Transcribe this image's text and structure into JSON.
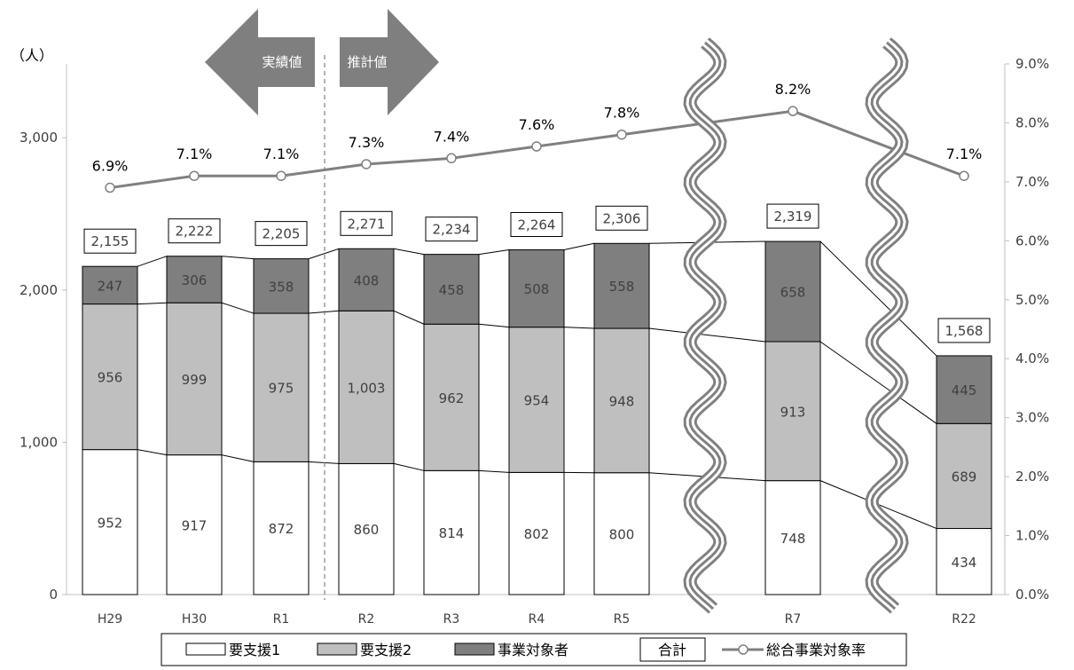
{
  "chart_data": {
    "type": "bar",
    "y_unit_label": "（人）",
    "categories": [
      "H29",
      "H30",
      "R1",
      "R2",
      "R3",
      "R4",
      "R5",
      "R7",
      "R22"
    ],
    "series": [
      {
        "name": "要支援1",
        "values": [
          952,
          917,
          872,
          860,
          814,
          802,
          800,
          748,
          434
        ],
        "color": "#ffffff"
      },
      {
        "name": "要支援2",
        "values": [
          956,
          999,
          975,
          1003,
          962,
          954,
          948,
          913,
          689
        ],
        "color": "#bfbfbf"
      },
      {
        "name": "事業対象者",
        "values": [
          247,
          306,
          358,
          408,
          458,
          508,
          558,
          658,
          445
        ],
        "color": "#7f7f7f"
      }
    ],
    "value_labels": {
      "要支援1": [
        "952",
        "917",
        "872",
        "860",
        "814",
        "802",
        "800",
        "748",
        "434"
      ],
      "要支援2": [
        "956",
        "999",
        "975",
        "1,003",
        "962",
        "954",
        "948",
        "913",
        "689"
      ],
      "事業対象者": [
        "247",
        "306",
        "358",
        "408",
        "458",
        "508",
        "558",
        "658",
        "445"
      ]
    },
    "totals": {
      "name": "合計",
      "values": [
        2155,
        2222,
        2205,
        2271,
        2234,
        2264,
        2306,
        2319,
        1568
      ],
      "labels": [
        "2,155",
        "2,222",
        "2,205",
        "2,271",
        "2,234",
        "2,264",
        "2,306",
        "2,319",
        "1,568"
      ]
    },
    "rate_series": {
      "name": "総合事業対象率",
      "type": "line",
      "axis": "right",
      "values": [
        6.9,
        7.1,
        7.1,
        7.3,
        7.4,
        7.6,
        7.8,
        8.2,
        7.1
      ],
      "labels": [
        "6.9%",
        "7.1%",
        "7.1%",
        "7.3%",
        "7.4%",
        "7.6%",
        "7.8%",
        "8.2%",
        "7.1%"
      ],
      "color": "#808080"
    },
    "y_left": {
      "min": 0,
      "max": 3500,
      "ticks": [
        0,
        1000,
        2000,
        3000
      ],
      "tick_labels": [
        "0",
        "1,000",
        "2,000",
        "3,000"
      ]
    },
    "y_right": {
      "min": 0,
      "max": 9,
      "ticks": [
        0,
        1,
        2,
        3,
        4,
        5,
        6,
        7,
        8,
        9
      ],
      "tick_labels": [
        "0.0%",
        "1.0%",
        "2.0%",
        "3.0%",
        "4.0%",
        "5.0%",
        "6.0%",
        "7.0%",
        "8.0%",
        "9.0%"
      ]
    },
    "annotations": {
      "actual": "実績値",
      "projected": "推計値",
      "divider_after": "R1",
      "breaks_between": [
        [
          "R5",
          "R7"
        ],
        [
          "R7",
          "R22"
        ]
      ]
    },
    "legend": {
      "position": "bottom",
      "items": [
        "要支援1",
        "要支援2",
        "事業対象者",
        "合計",
        "総合事業対象率"
      ]
    },
    "grid": false
  }
}
